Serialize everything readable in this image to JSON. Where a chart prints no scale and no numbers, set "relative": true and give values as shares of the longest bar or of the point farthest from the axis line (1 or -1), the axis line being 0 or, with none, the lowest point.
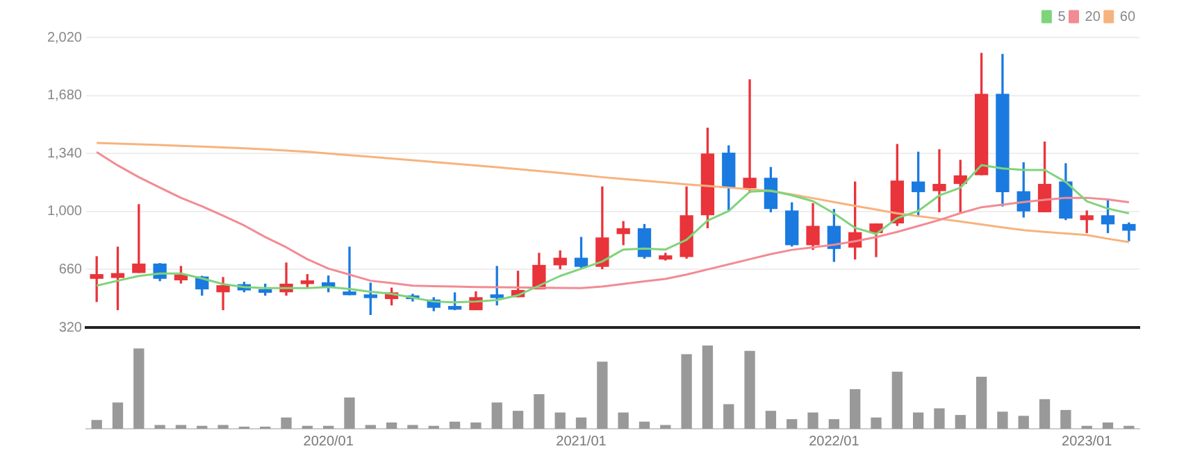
{
  "chart_data": [
    {
      "type": "candlestick",
      "categories": [
        null,
        null,
        null,
        null,
        null,
        null,
        null,
        null,
        null,
        null,
        null,
        null,
        null,
        null,
        null,
        null,
        null,
        null,
        null,
        null,
        null,
        null,
        null,
        null,
        null,
        null,
        null,
        null,
        null,
        null,
        null,
        null,
        null,
        null,
        null,
        null,
        null,
        null,
        null,
        null,
        null,
        null,
        null,
        null,
        null,
        null,
        null,
        null,
        null,
        null
      ],
      "ohlc": [
        [
          608,
          735,
          472,
          630
        ],
        [
          613,
          791,
          424,
          636
        ],
        [
          642,
          1040,
          642,
          692
        ],
        [
          692,
          695,
          594,
          608
        ],
        [
          599,
          678,
          580,
          627
        ],
        [
          616,
          620,
          509,
          546
        ],
        [
          529,
          613,
          424,
          565
        ],
        [
          571,
          585,
          529,
          540
        ],
        [
          537,
          574,
          509,
          526
        ],
        [
          529,
          698,
          509,
          574
        ],
        [
          577,
          630,
          557,
          588
        ],
        [
          582,
          622,
          529,
          557
        ],
        [
          526,
          791,
          512,
          512
        ],
        [
          506,
          580,
          396,
          495
        ],
        [
          489,
          551,
          452,
          523
        ],
        [
          503,
          515,
          475,
          489
        ],
        [
          481,
          495,
          418,
          438
        ],
        [
          438,
          523,
          424,
          427
        ],
        [
          424,
          529,
          424,
          495
        ],
        [
          509,
          678,
          452,
          495
        ],
        [
          500,
          650,
          500,
          537
        ],
        [
          546,
          755,
          546,
          684
        ],
        [
          687,
          769,
          664,
          726
        ],
        [
          726,
          848,
          664,
          678
        ],
        [
          678,
          1144,
          664,
          845
        ],
        [
          870,
          941,
          805,
          899
        ],
        [
          899,
          924,
          726,
          735
        ],
        [
          721,
          755,
          715,
          740
        ],
        [
          735,
          1144,
          726,
          975
        ],
        [
          981,
          1489,
          904,
          1337
        ],
        [
          1342,
          1385,
          1003,
          1144
        ],
        [
          1139,
          1772,
          1111,
          1195
        ],
        [
          1195,
          1258,
          998,
          1017
        ],
        [
          1003,
          1051,
          797,
          805
        ],
        [
          805,
          1046,
          777,
          913
        ],
        [
          913,
          1012,
          707,
          783
        ],
        [
          791,
          1173,
          721,
          876
        ],
        [
          876,
          927,
          735,
          927
        ],
        [
          933,
          1393,
          918,
          1178
        ],
        [
          1173,
          1348,
          975,
          1116
        ],
        [
          1122,
          1362,
          998,
          1159
        ],
        [
          1164,
          1300,
          998,
          1209
        ],
        [
          1215,
          1927,
          1215,
          1687
        ],
        [
          1687,
          1921,
          1032,
          1116
        ],
        [
          1116,
          1286,
          967,
          1003
        ],
        [
          998,
          1407,
          998,
          1159
        ],
        [
          1173,
          1280,
          952,
          961
        ],
        [
          952,
          1003,
          876,
          975
        ],
        [
          975,
          1074,
          876,
          927
        ],
        [
          924,
          933,
          828,
          890
        ]
      ],
      "colors": [
        "#e8343a",
        "#e8343a",
        "#e8343a",
        "#1a7ae0",
        "#e8343a",
        "#1a7ae0",
        "#e8343a",
        "#1a7ae0",
        "#1a7ae0",
        "#e8343a",
        "#e8343a",
        "#1a7ae0",
        "#1a7ae0",
        "#1a7ae0",
        "#e8343a",
        "#1a7ae0",
        "#1a7ae0",
        "#1a7ae0",
        "#e8343a",
        "#1a7ae0",
        "#e8343a",
        "#e8343a",
        "#e8343a",
        "#1a7ae0",
        "#e8343a",
        "#e8343a",
        "#1a7ae0",
        "#e8343a",
        "#e8343a",
        "#e8343a",
        "#1a7ae0",
        "#e8343a",
        "#1a7ae0",
        "#1a7ae0",
        "#e8343a",
        "#1a7ae0",
        "#e8343a",
        "#e8343a",
        "#e8343a",
        "#1a7ae0",
        "#e8343a",
        "#e8343a",
        "#e8343a",
        "#1a7ae0",
        "#1a7ae0",
        "#e8343a",
        "#1a7ae0",
        "#e8343a",
        "#1a7ae0",
        "#1a7ae0"
      ],
      "series": [
        {
          "name": "5",
          "type": "line",
          "color": "#7fd47a",
          "values": [
            565,
            594,
            622,
            636,
            636,
            608,
            574,
            557,
            551,
            551,
            551,
            557,
            546,
            529,
            517,
            495,
            472,
            467,
            472,
            481,
            509,
            565,
            622,
            664,
            707,
            777,
            783,
            777,
            834,
            947,
            1003,
            1116,
            1122,
            1095,
            1060,
            989,
            904,
            868,
            961,
            1003,
            1094,
            1139,
            1272,
            1252,
            1243,
            1243,
            1173,
            1060,
            1017,
            989
          ]
        },
        {
          "name": "20",
          "type": "line",
          "color": "#f28b93",
          "values": [
            1348,
            1270,
            1201,
            1140,
            1080,
            1030,
            975,
            918,
            850,
            790,
            720,
            665,
            630,
            594,
            580,
            565,
            562,
            560,
            557,
            556,
            555,
            553,
            552,
            551,
            560,
            575,
            590,
            605,
            630,
            660,
            690,
            720,
            750,
            775,
            790,
            805,
            825,
            850,
            880,
            915,
            950,
            990,
            1025,
            1040,
            1055,
            1068,
            1080,
            1080,
            1070,
            1054
          ]
        },
        {
          "name": "60",
          "type": "line",
          "color": "#f7b37e",
          "values": [
            1402,
            1398,
            1394,
            1390,
            1385,
            1380,
            1375,
            1370,
            1364,
            1357,
            1350,
            1340,
            1330,
            1320,
            1310,
            1300,
            1290,
            1280,
            1270,
            1259,
            1248,
            1237,
            1226,
            1214,
            1201,
            1190,
            1180,
            1170,
            1159,
            1150,
            1140,
            1130,
            1120,
            1100,
            1078,
            1055,
            1033,
            1011,
            989,
            973,
            957,
            941,
            924,
            907,
            890,
            880,
            871,
            862,
            840,
            820
          ]
        }
      ],
      "ylim": [
        320,
        2020
      ],
      "yticks": [
        {
          "value": 320,
          "label": "320"
        },
        {
          "value": 660,
          "label": "660"
        },
        {
          "value": 1000,
          "label": "1,000"
        },
        {
          "value": 1340,
          "label": "1,340"
        },
        {
          "value": 1680,
          "label": "1,680"
        },
        {
          "value": 2020,
          "label": "2,020"
        }
      ],
      "tick_labels": "y",
      "grid": "y",
      "legend": "top right",
      "marker": "none"
    },
    {
      "type": "bar",
      "categories": [
        null,
        null,
        null,
        null,
        null,
        null,
        null,
        null,
        null,
        null,
        null,
        "2020/01",
        null,
        null,
        null,
        null,
        null,
        null,
        null,
        null,
        null,
        null,
        null,
        "2021/01",
        null,
        null,
        null,
        null,
        null,
        null,
        null,
        null,
        null,
        null,
        null,
        "2022/01",
        null,
        null,
        null,
        null,
        null,
        null,
        null,
        null,
        null,
        null,
        null,
        "2023/01",
        null,
        null
      ],
      "values": [
        0.1,
        0.31,
        0.96,
        0.04,
        0.04,
        0.03,
        0.04,
        0.02,
        0.02,
        0.13,
        0.03,
        0.03,
        0.37,
        0.04,
        0.07,
        0.04,
        0.03,
        0.08,
        0.07,
        0.31,
        0.21,
        0.41,
        0.19,
        0.13,
        0.8,
        0.19,
        0.08,
        0.04,
        0.89,
        1,
        0.29,
        0.93,
        0.21,
        0.11,
        0.19,
        0.11,
        0.47,
        0.13,
        0.68,
        0.19,
        0.24,
        0.16,
        0.62,
        0.2,
        0.15,
        0.35,
        0.22,
        0.03,
        0.07,
        0.03
      ],
      "color": "#999999",
      "relative": true,
      "tick_labels": "x"
    }
  ]
}
